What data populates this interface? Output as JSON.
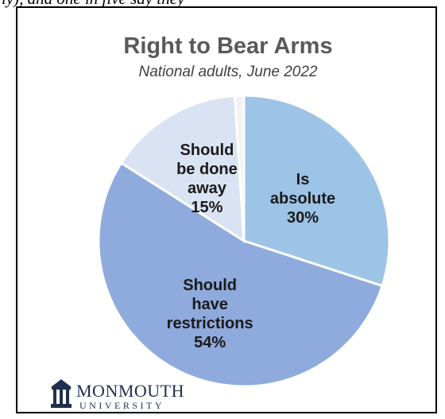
{
  "header_fragment": "ly), and one in five say they",
  "chart_data": {
    "type": "pie",
    "title": "Right to Bear Arms",
    "subtitle": "National adults, June 2022",
    "slices": [
      {
        "label_lines": [
          "Is",
          "absolute"
        ],
        "value": 30,
        "value_label": "30%",
        "color": "#9dc3e6"
      },
      {
        "label_lines": [
          "Should",
          "have",
          "restrictions"
        ],
        "value": 54,
        "value_label": "54%",
        "color": "#8faadc"
      },
      {
        "label_lines": [
          "Should",
          "be done",
          "away"
        ],
        "value": 15,
        "value_label": "15%",
        "color": "#dae3f3"
      },
      {
        "label_lines": [],
        "value": 1,
        "value_label": "",
        "color": "#f2f2f2"
      }
    ],
    "start_angle_deg": 0,
    "direction": "clockwise"
  },
  "logo": {
    "name": "MONMOUTH",
    "sub": "UNIVERSITY",
    "icon": "building-icon"
  }
}
